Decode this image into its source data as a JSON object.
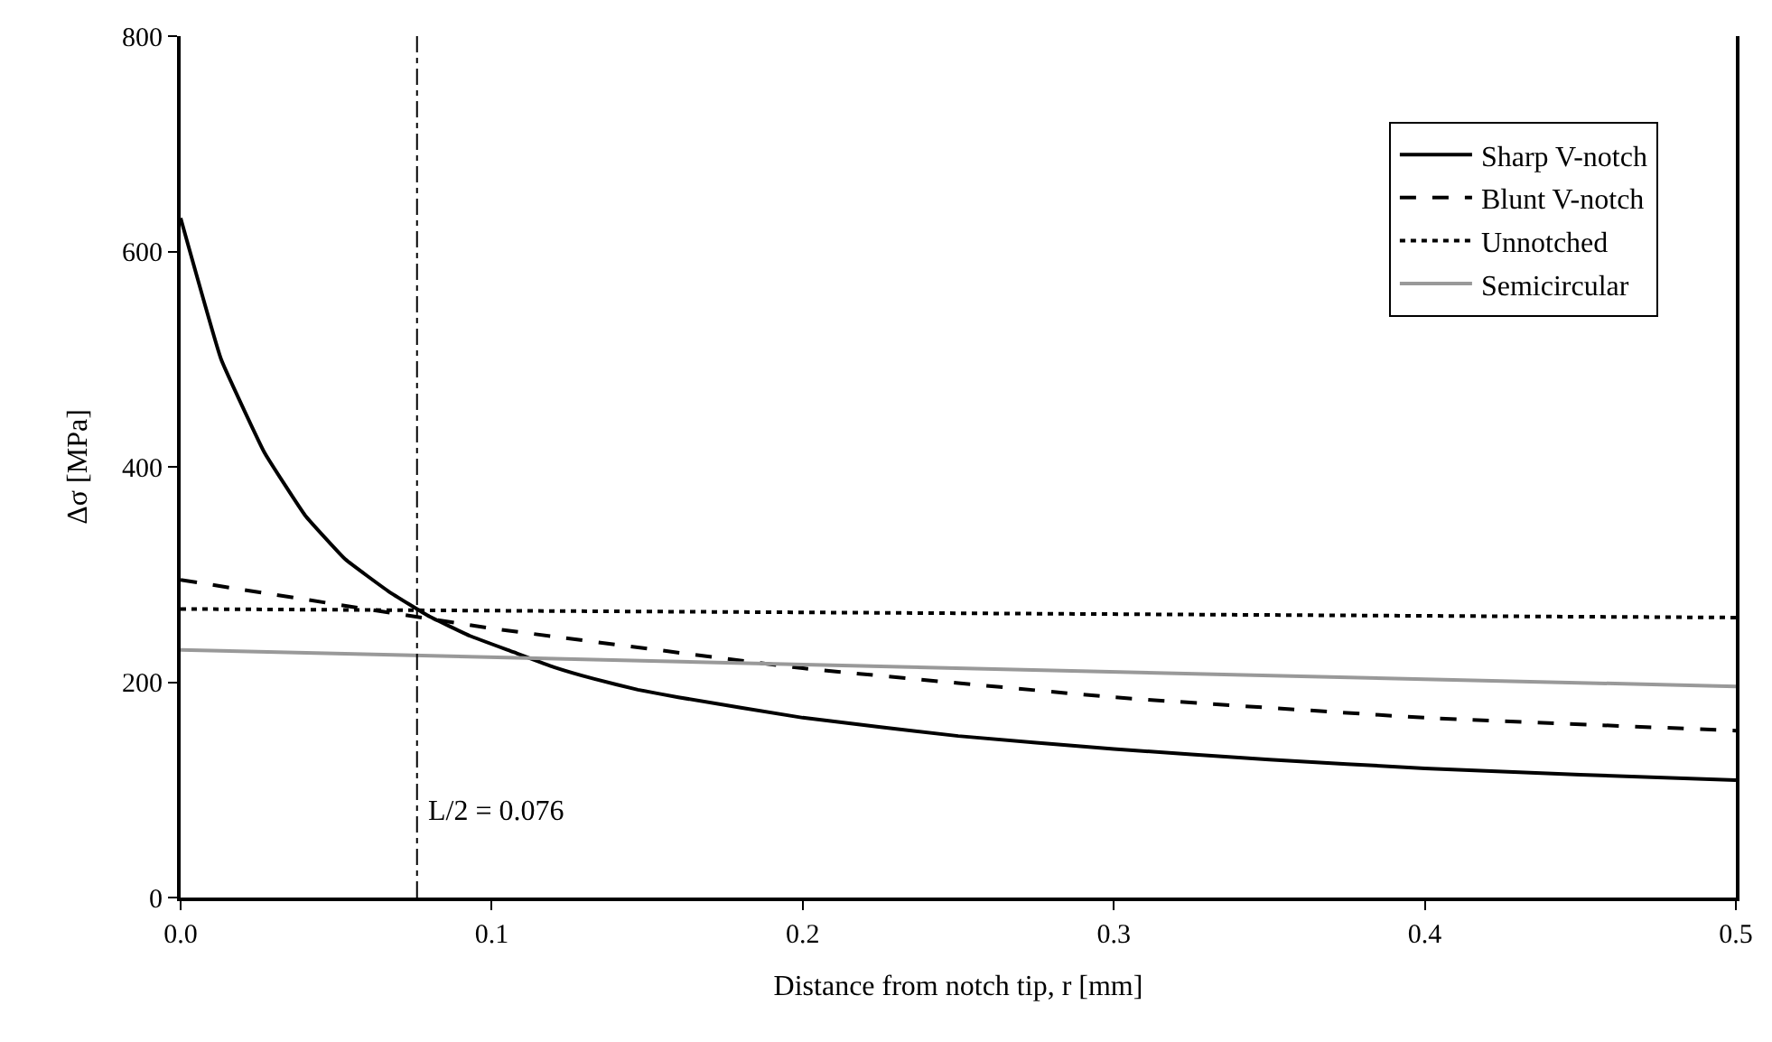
{
  "chart_data": {
    "type": "line",
    "xlabel": "Distance from notch tip, r [mm]",
    "ylabel": "Δσ [MPa]",
    "xlim": [
      0,
      0.5
    ],
    "xticks": [
      {
        "value": 0,
        "label": "0.0"
      },
      0.1,
      0.2,
      0.3,
      0.4,
      0.5
    ],
    "ylim": [
      0,
      800
    ],
    "yticks": [
      0,
      200,
      400,
      600,
      800
    ],
    "legend": "top right",
    "marker": "none",
    "series": [
      {
        "name": "Sharp V-notch",
        "color": "#000000",
        "line_style": "solid",
        "x": [
          0,
          0.013,
          0.027,
          0.04,
          0.053,
          0.067,
          0.08,
          0.093,
          0.107,
          0.12,
          0.133,
          0.147,
          0.16,
          0.2,
          0.25,
          0.3,
          0.35,
          0.4,
          0.45,
          0.5
        ],
        "values": [
          631,
          500,
          413,
          355,
          314,
          284,
          261,
          243,
          228,
          214,
          203,
          193,
          186,
          167,
          150,
          138,
          128,
          120,
          114,
          109
        ]
      },
      {
        "name": "Blunt V-notch",
        "color": "#000000",
        "line_style": "dashed",
        "x": [
          0,
          0.1,
          0.2,
          0.3,
          0.4,
          0.5
        ],
        "values": [
          295,
          250,
          213,
          186,
          167,
          155
        ]
      },
      {
        "name": "Unnotched",
        "color": "#000000",
        "line_style": "dotted",
        "x": [
          0,
          0.5
        ],
        "values": [
          268,
          260
        ]
      },
      {
        "name": "Semicircular",
        "color": "#999999",
        "line_style": "solid",
        "x": [
          0,
          0.5
        ],
        "values": [
          230,
          196
        ]
      }
    ],
    "ref_lines": [
      {
        "axis": "x",
        "value": 0.076,
        "label": "L/2 = 0.076",
        "color": "#000000",
        "line_style": "dashdot"
      }
    ]
  }
}
